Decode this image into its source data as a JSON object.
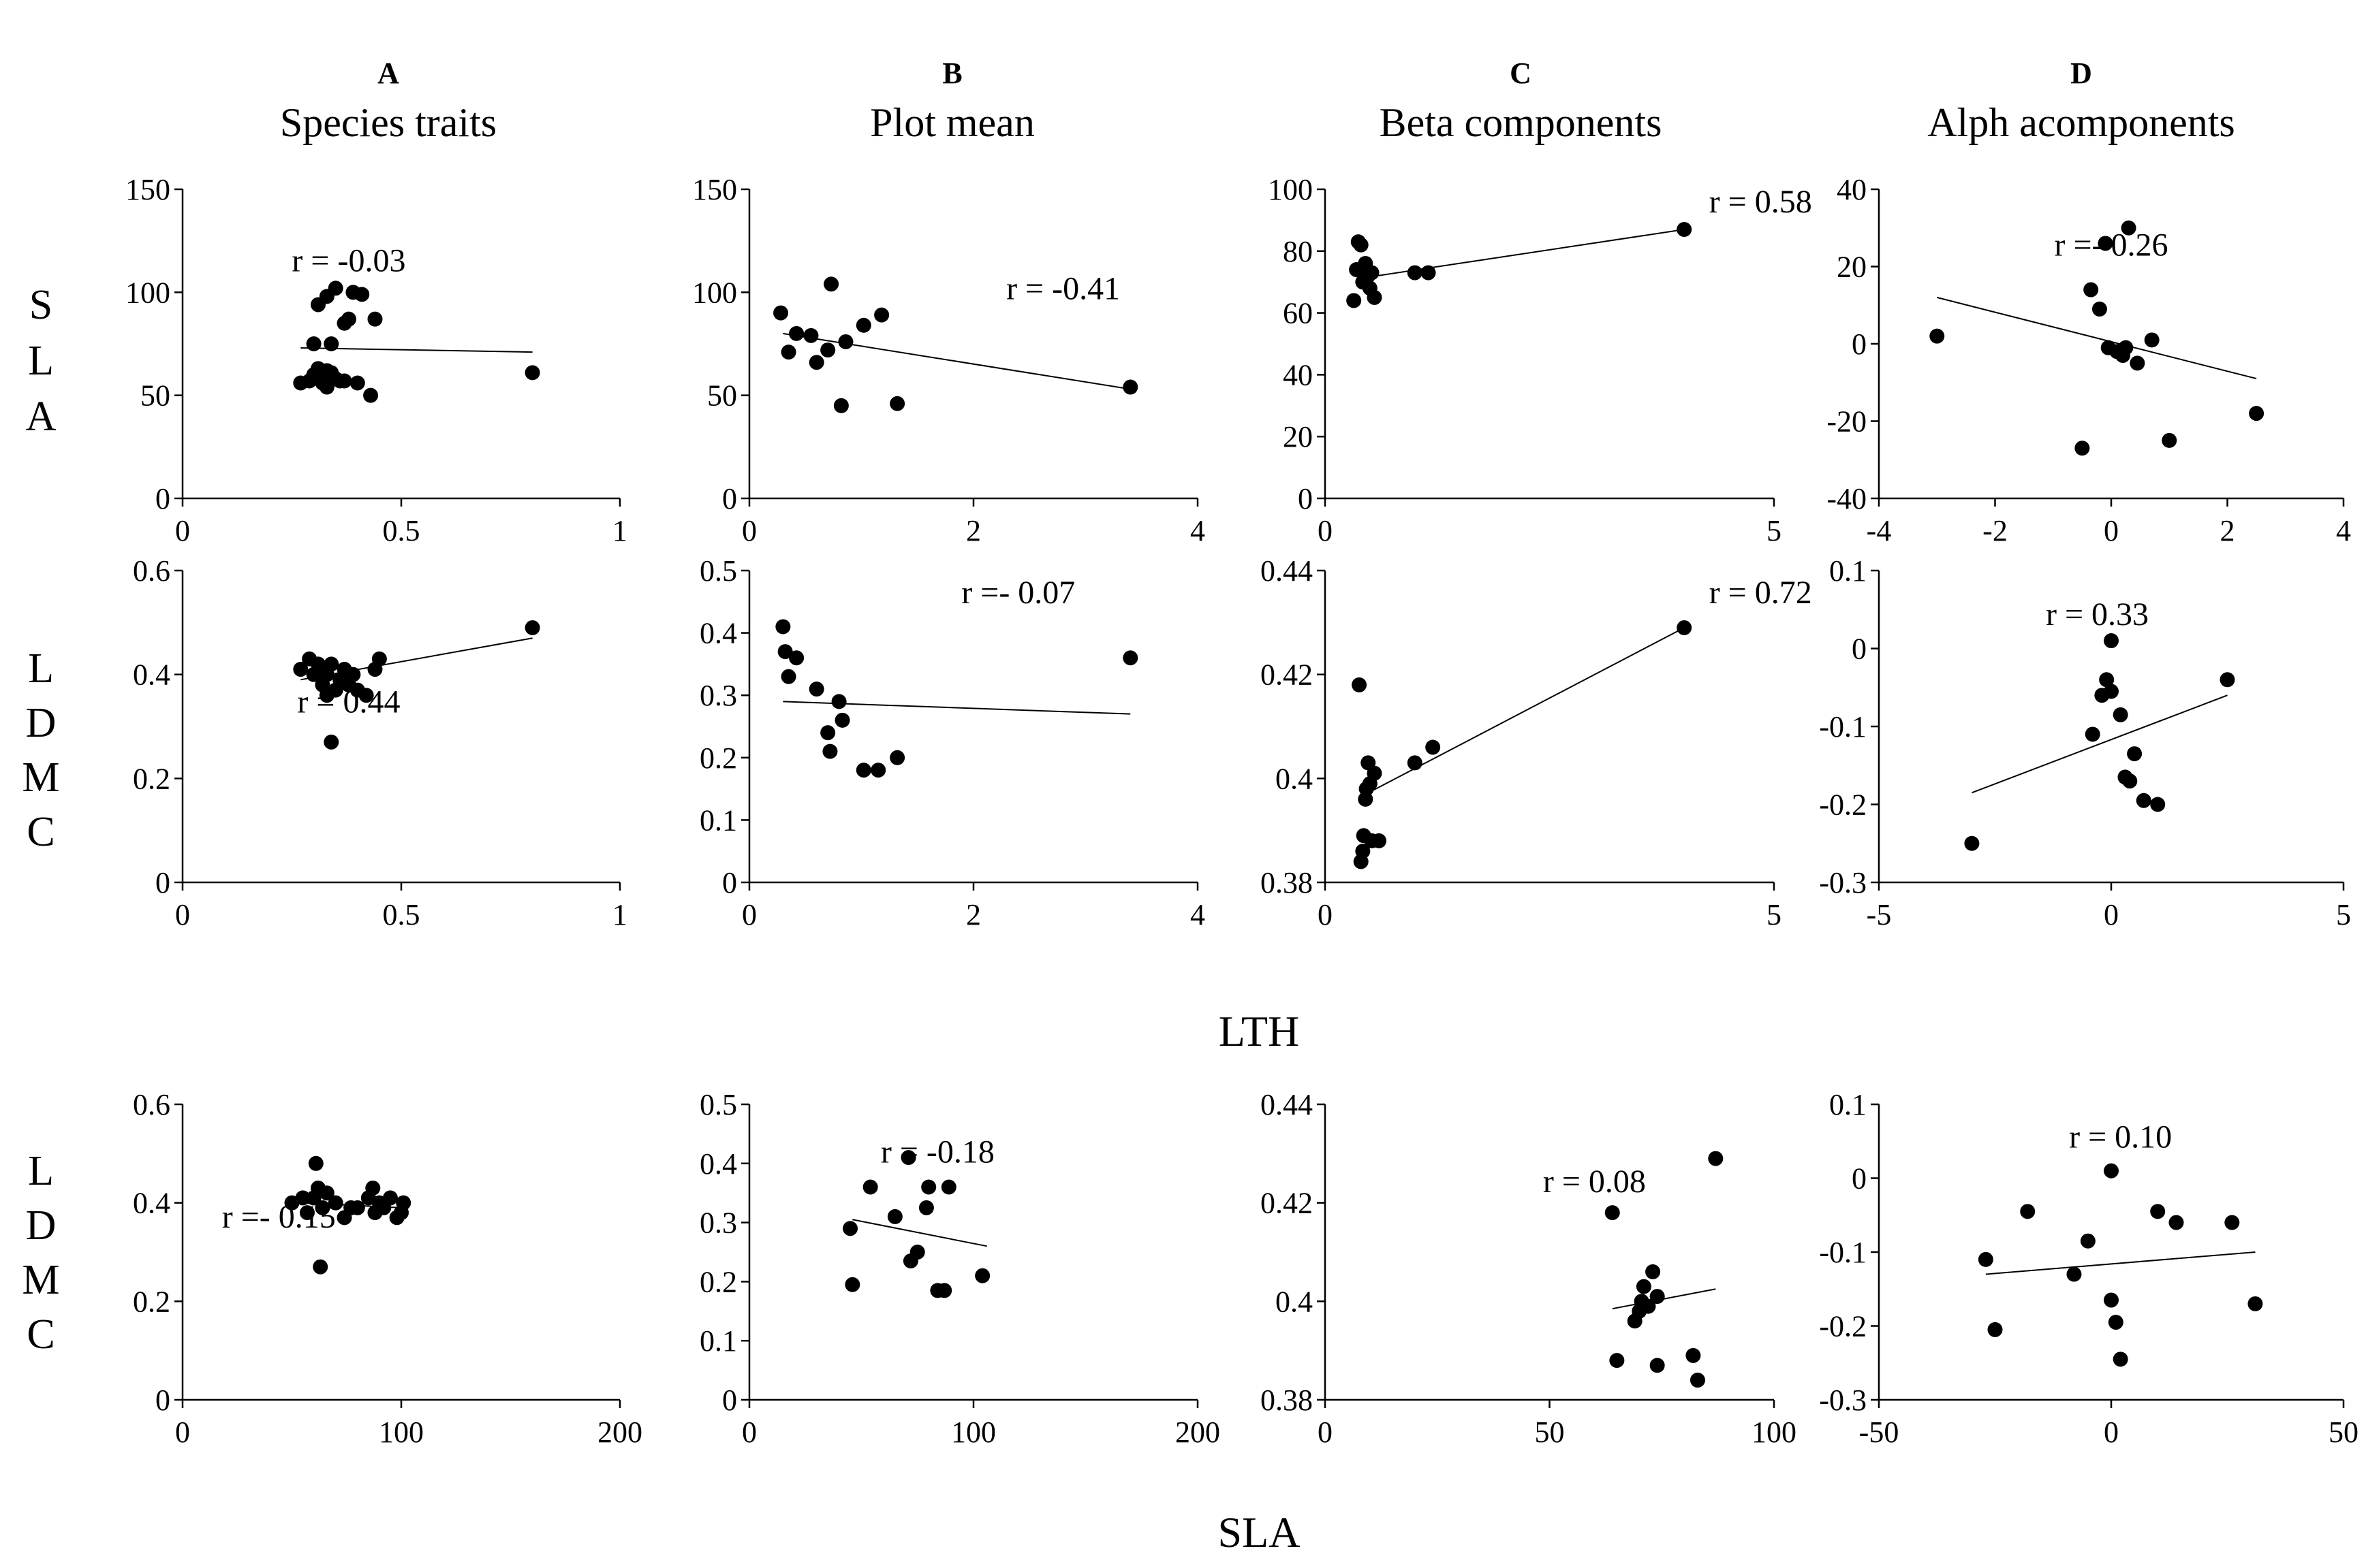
{
  "columns": [
    {
      "letter": "A",
      "title": "Species traits"
    },
    {
      "letter": "B",
      "title": "Plot mean"
    },
    {
      "letter": "C",
      "title": "Beta components"
    },
    {
      "letter": "D",
      "title": "Alph acomponents"
    }
  ],
  "row_labels": [
    {
      "name": "SLA",
      "letters": [
        "S",
        "L",
        "A"
      ]
    },
    {
      "name": "LDMC",
      "letters": [
        "L",
        "D",
        "M",
        "C"
      ]
    },
    {
      "name": "LDMC",
      "letters": [
        "L",
        "D",
        "M",
        "C"
      ]
    }
  ],
  "x_titles": [
    "LTH",
    "SLA"
  ],
  "chart_data": [
    {
      "type": "scatter",
      "row": 0,
      "col": 0,
      "xlabel": "LTH",
      "ylabel": "SLA",
      "xlim": [
        0,
        1
      ],
      "ylim": [
        0,
        150
      ],
      "xticks": [
        "0",
        "0.5",
        "1"
      ],
      "yticks": [
        "0",
        "50",
        "100",
        "150"
      ],
      "r_label": "r = -0.03",
      "trend": [
        [
          0.27,
          73
        ],
        [
          0.8,
          71
        ]
      ],
      "points": [
        [
          0.27,
          56
        ],
        [
          0.29,
          57
        ],
        [
          0.3,
          60
        ],
        [
          0.3,
          75
        ],
        [
          0.31,
          94
        ],
        [
          0.31,
          63
        ],
        [
          0.32,
          56
        ],
        [
          0.32,
          60
        ],
        [
          0.33,
          54
        ],
        [
          0.33,
          62
        ],
        [
          0.33,
          98
        ],
        [
          0.34,
          75
        ],
        [
          0.34,
          61
        ],
        [
          0.35,
          102
        ],
        [
          0.35,
          58
        ],
        [
          0.36,
          57
        ],
        [
          0.37,
          57
        ],
        [
          0.37,
          85
        ],
        [
          0.38,
          87
        ],
        [
          0.39,
          100
        ],
        [
          0.4,
          56
        ],
        [
          0.41,
          99
        ],
        [
          0.43,
          50
        ],
        [
          0.44,
          87
        ],
        [
          0.8,
          61
        ]
      ]
    },
    {
      "type": "scatter",
      "row": 0,
      "col": 1,
      "xlabel": "LTH",
      "ylabel": "SLA",
      "xlim": [
        0,
        4
      ],
      "ylim": [
        0,
        150
      ],
      "xticks": [
        "0",
        "2",
        "4"
      ],
      "yticks": [
        "0",
        "50",
        "100",
        "150"
      ],
      "r_label": "r = -0.41",
      "trend": [
        [
          0.3,
          80
        ],
        [
          3.4,
          53
        ]
      ],
      "points": [
        [
          0.28,
          90
        ],
        [
          0.35,
          71
        ],
        [
          0.42,
          80
        ],
        [
          0.55,
          79
        ],
        [
          0.6,
          66
        ],
        [
          0.7,
          72
        ],
        [
          0.73,
          104
        ],
        [
          0.82,
          45
        ],
        [
          0.86,
          76
        ],
        [
          1.02,
          84
        ],
        [
          1.18,
          89
        ],
        [
          1.32,
          46
        ],
        [
          3.4,
          54
        ]
      ]
    },
    {
      "type": "scatter",
      "row": 0,
      "col": 2,
      "xlabel": "LTH",
      "ylabel": "SLA",
      "xlim": [
        0,
        5
      ],
      "ylim": [
        0,
        100
      ],
      "xticks": [
        "0",
        "5"
      ],
      "yticks": [
        "0",
        "20",
        "40",
        "60",
        "80",
        "100"
      ],
      "r_label": "r = 0.58",
      "trend": [
        [
          0.35,
          71
        ],
        [
          4,
          87
        ]
      ],
      "points": [
        [
          0.32,
          64
        ],
        [
          0.35,
          74
        ],
        [
          0.37,
          83
        ],
        [
          0.4,
          82
        ],
        [
          0.42,
          70
        ],
        [
          0.45,
          76
        ],
        [
          0.48,
          72
        ],
        [
          0.5,
          68
        ],
        [
          0.52,
          73
        ],
        [
          0.55,
          65
        ],
        [
          1,
          73
        ],
        [
          1.15,
          73
        ],
        [
          4,
          87
        ]
      ]
    },
    {
      "type": "scatter",
      "row": 0,
      "col": 3,
      "xlabel": "LTH",
      "ylabel": "SLA",
      "xlim": [
        -4,
        4
      ],
      "ylim": [
        -40,
        40
      ],
      "xticks": [
        "-4",
        "-2",
        "0",
        "2",
        "4"
      ],
      "yticks": [
        "-40",
        "-20",
        "0",
        "20",
        "40"
      ],
      "r_label": "r =- 0.26",
      "trend": [
        [
          -3,
          12
        ],
        [
          2.5,
          -9
        ]
      ],
      "points": [
        [
          -3,
          2
        ],
        [
          -0.5,
          -27
        ],
        [
          -0.35,
          14
        ],
        [
          -0.2,
          9
        ],
        [
          -0.1,
          26
        ],
        [
          -0.05,
          -1
        ],
        [
          0.1,
          -2
        ],
        [
          0.2,
          -3
        ],
        [
          0.25,
          -1
        ],
        [
          0.3,
          30
        ],
        [
          0.45,
          -5
        ],
        [
          0.7,
          1
        ],
        [
          1,
          -25
        ],
        [
          2.5,
          -18
        ]
      ]
    },
    {
      "type": "scatter",
      "row": 1,
      "col": 0,
      "xlabel": "LTH",
      "ylabel": "LDMC",
      "xlim": [
        0,
        1
      ],
      "ylim": [
        0,
        0.6
      ],
      "xticks": [
        "0",
        "0.5",
        "1"
      ],
      "yticks": [
        "0",
        "0.2",
        "0.4",
        "0.6"
      ],
      "r_label": "r = 0.44",
      "trend": [
        [
          0.27,
          0.39
        ],
        [
          0.8,
          0.47
        ]
      ],
      "points": [
        [
          0.27,
          0.41
        ],
        [
          0.29,
          0.43
        ],
        [
          0.3,
          0.4
        ],
        [
          0.31,
          0.42
        ],
        [
          0.32,
          0.38
        ],
        [
          0.33,
          0.36
        ],
        [
          0.33,
          0.4
        ],
        [
          0.34,
          0.27
        ],
        [
          0.34,
          0.42
        ],
        [
          0.35,
          0.37
        ],
        [
          0.36,
          0.39
        ],
        [
          0.37,
          0.41
        ],
        [
          0.38,
          0.38
        ],
        [
          0.39,
          0.4
        ],
        [
          0.4,
          0.37
        ],
        [
          0.42,
          0.36
        ],
        [
          0.44,
          0.41
        ],
        [
          0.45,
          0.43
        ],
        [
          0.8,
          0.49
        ]
      ]
    },
    {
      "type": "scatter",
      "row": 1,
      "col": 1,
      "xlabel": "LTH",
      "ylabel": "LDMC",
      "xlim": [
        0,
        4
      ],
      "ylim": [
        0,
        0.5
      ],
      "xticks": [
        "0",
        "2",
        "4"
      ],
      "yticks": [
        "0",
        "0.1",
        "0.2",
        "0.3",
        "0.4",
        "0.5"
      ],
      "r_label": "r =- 0.07",
      "trend": [
        [
          0.3,
          0.29
        ],
        [
          3.4,
          0.27
        ]
      ],
      "points": [
        [
          0.3,
          0.41
        ],
        [
          0.32,
          0.37
        ],
        [
          0.35,
          0.33
        ],
        [
          0.42,
          0.36
        ],
        [
          0.6,
          0.31
        ],
        [
          0.7,
          0.24
        ],
        [
          0.72,
          0.21
        ],
        [
          0.8,
          0.29
        ],
        [
          0.83,
          0.26
        ],
        [
          1.02,
          0.18
        ],
        [
          1.15,
          0.18
        ],
        [
          1.32,
          0.2
        ],
        [
          3.4,
          0.36
        ]
      ]
    },
    {
      "type": "scatter",
      "row": 1,
      "col": 2,
      "xlabel": "LTH",
      "ylabel": "LDMC",
      "xlim": [
        0,
        5
      ],
      "ylim": [
        0.38,
        0.44
      ],
      "xticks": [
        "0",
        "5"
      ],
      "yticks": [
        "0.38",
        "0.4",
        "0.42",
        "0.44"
      ],
      "r_label": "r = 0.72",
      "trend": [
        [
          0.4,
          0.3965
        ],
        [
          4,
          0.429
        ]
      ],
      "points": [
        [
          0.38,
          0.418
        ],
        [
          0.4,
          0.384
        ],
        [
          0.42,
          0.386
        ],
        [
          0.43,
          0.389
        ],
        [
          0.45,
          0.396
        ],
        [
          0.46,
          0.398
        ],
        [
          0.48,
          0.403
        ],
        [
          0.5,
          0.399
        ],
        [
          0.52,
          0.388
        ],
        [
          0.55,
          0.401
        ],
        [
          0.6,
          0.388
        ],
        [
          1,
          0.403
        ],
        [
          1.2,
          0.406
        ],
        [
          4,
          0.429
        ]
      ]
    },
    {
      "type": "scatter",
      "row": 1,
      "col": 3,
      "xlabel": "LTH",
      "ylabel": "LDMC",
      "xlim": [
        -5,
        5
      ],
      "ylim": [
        -0.3,
        0.1
      ],
      "xticks": [
        "-5",
        "0",
        "5"
      ],
      "yticks": [
        "-0.3",
        "-0.2",
        "-0.1",
        "0",
        "0.1"
      ],
      "r_label": "r = 0.33",
      "trend": [
        [
          -3,
          -0.185
        ],
        [
          2.5,
          -0.06
        ]
      ],
      "points": [
        [
          -3,
          -0.25
        ],
        [
          -0.4,
          -0.11
        ],
        [
          -0.2,
          -0.06
        ],
        [
          -0.1,
          -0.04
        ],
        [
          0,
          0.01
        ],
        [
          0,
          -0.055
        ],
        [
          0.2,
          -0.085
        ],
        [
          0.3,
          -0.165
        ],
        [
          0.4,
          -0.17
        ],
        [
          0.5,
          -0.135
        ],
        [
          0.7,
          -0.195
        ],
        [
          1,
          -0.2
        ],
        [
          2.5,
          -0.04
        ]
      ]
    },
    {
      "type": "scatter",
      "row": 2,
      "col": 0,
      "xlabel": "SLA",
      "ylabel": "LDMC",
      "xlim": [
        0,
        200
      ],
      "ylim": [
        0,
        0.6
      ],
      "xticks": [
        "0",
        "100",
        "200"
      ],
      "yticks": [
        "0",
        "0.2",
        "0.4",
        "0.6"
      ],
      "r_label": "r =- 0.15",
      "trend": [
        [
          55,
          0.4
        ],
        [
          100,
          0.39
        ]
      ],
      "points": [
        [
          50,
          0.4
        ],
        [
          55,
          0.41
        ],
        [
          57,
          0.38
        ],
        [
          60,
          0.41
        ],
        [
          61,
          0.48
        ],
        [
          62,
          0.43
        ],
        [
          63,
          0.27
        ],
        [
          64,
          0.39
        ],
        [
          66,
          0.42
        ],
        [
          70,
          0.4
        ],
        [
          74,
          0.37
        ],
        [
          77,
          0.39
        ],
        [
          80,
          0.39
        ],
        [
          85,
          0.41
        ],
        [
          87,
          0.43
        ],
        [
          88,
          0.38
        ],
        [
          90,
          0.4
        ],
        [
          92,
          0.39
        ],
        [
          95,
          0.41
        ],
        [
          98,
          0.37
        ],
        [
          100,
          0.38
        ],
        [
          101,
          0.4
        ]
      ]
    },
    {
      "type": "scatter",
      "row": 2,
      "col": 1,
      "xlabel": "SLA",
      "ylabel": "LDMC",
      "xlim": [
        0,
        200
      ],
      "ylim": [
        0,
        0.5
      ],
      "xticks": [
        "0",
        "100",
        "200"
      ],
      "yticks": [
        "0",
        "0.1",
        "0.2",
        "0.3",
        "0.4",
        "0.5"
      ],
      "r_label": "r = -0.18",
      "trend": [
        [
          46,
          0.305
        ],
        [
          106,
          0.26
        ]
      ],
      "points": [
        [
          45,
          0.29
        ],
        [
          46,
          0.195
        ],
        [
          54,
          0.36
        ],
        [
          65,
          0.31
        ],
        [
          71,
          0.41
        ],
        [
          72,
          0.235
        ],
        [
          75,
          0.25
        ],
        [
          79,
          0.325
        ],
        [
          80,
          0.36
        ],
        [
          84,
          0.185
        ],
        [
          87,
          0.185
        ],
        [
          89,
          0.36
        ],
        [
          104,
          0.21
        ]
      ]
    },
    {
      "type": "scatter",
      "row": 2,
      "col": 2,
      "xlabel": "SLA",
      "ylabel": "LDMC",
      "xlim": [
        0,
        100
      ],
      "ylim": [
        0.38,
        0.44
      ],
      "xticks": [
        "0",
        "50",
        "100"
      ],
      "yticks": [
        "0.38",
        "0.4",
        "0.42",
        "0.44"
      ],
      "r_label": "r = 0.08",
      "trend": [
        [
          64,
          0.3985
        ],
        [
          87,
          0.4025
        ]
      ],
      "points": [
        [
          64,
          0.418
        ],
        [
          65,
          0.388
        ],
        [
          69,
          0.396
        ],
        [
          70,
          0.398
        ],
        [
          70.5,
          0.4
        ],
        [
          71,
          0.403
        ],
        [
          72,
          0.399
        ],
        [
          73,
          0.406
        ],
        [
          74,
          0.401
        ],
        [
          74,
          0.387
        ],
        [
          82,
          0.389
        ],
        [
          83,
          0.384
        ],
        [
          87,
          0.429
        ]
      ]
    },
    {
      "type": "scatter",
      "row": 2,
      "col": 3,
      "xlabel": "SLA",
      "ylabel": "LDMC",
      "xlim": [
        -50,
        50
      ],
      "ylim": [
        -0.3,
        0.1
      ],
      "xticks": [
        "-50",
        "0",
        "50"
      ],
      "yticks": [
        "-0.3",
        "-0.2",
        "-0.1",
        "0",
        "0.1"
      ],
      "r_label": "r = 0.10",
      "trend": [
        [
          -27,
          -0.13
        ],
        [
          31,
          -0.1
        ]
      ],
      "points": [
        [
          -27,
          -0.11
        ],
        [
          -25,
          -0.205
        ],
        [
          -18,
          -0.045
        ],
        [
          -8,
          -0.13
        ],
        [
          -5,
          -0.085
        ],
        [
          0,
          0.01
        ],
        [
          0,
          -0.165
        ],
        [
          1,
          -0.195
        ],
        [
          2,
          -0.245
        ],
        [
          10,
          -0.045
        ],
        [
          14,
          -0.06
        ],
        [
          26,
          -0.06
        ],
        [
          31,
          -0.17
        ]
      ]
    }
  ]
}
